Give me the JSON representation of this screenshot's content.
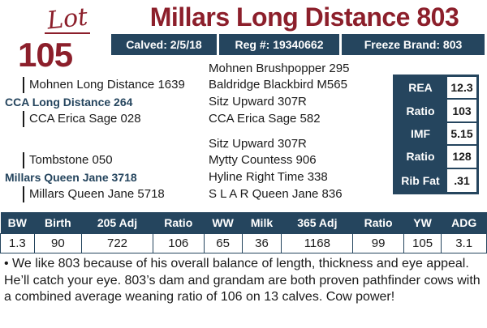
{
  "lot": {
    "label": "Lot",
    "number": "105"
  },
  "title": "Millars Long Distance 803",
  "info_bar": {
    "calved": "Calved: 2/5/18",
    "reg": "Reg #: 19340662",
    "freeze_brand": "Freeze Brand: 803"
  },
  "pedigree": {
    "sire_sire_sire": "Mohnen Brushpopper 295",
    "sire_sire": "Mohnen Long Distance 1639",
    "sire_sire_dam": "Baldridge Blackbird M565",
    "sire": "CCA Long Distance 264",
    "sire_dam_sire": "Sitz Upward 307R",
    "sire_dam": "CCA Erica Sage 028",
    "sire_dam_dam": "CCA Erica Sage 582",
    "dam_sire_sire": "Sitz Upward 307R",
    "dam_sire": "Tombstone 050",
    "dam_sire_dam": "Mytty Countess 906",
    "dam": "Millars Queen Jane 3718",
    "dam_dam_sire": "Hyline Right Time 338",
    "dam_dam": "Millars Queen Jane 5718",
    "dam_dam_dam": "S L A R Queen Jane 836"
  },
  "epd": [
    {
      "label": "REA",
      "value": "12.3"
    },
    {
      "label": "Ratio",
      "value": "103"
    },
    {
      "label": "IMF",
      "value": "5.15"
    },
    {
      "label": "Ratio",
      "value": "128"
    },
    {
      "label": "Rib Fat",
      "value": ".31"
    }
  ],
  "performance": {
    "headers": [
      "BW",
      "Birth",
      "205 Adj",
      "Ratio",
      "WW",
      "Milk",
      "365 Adj",
      "Ratio",
      "YW",
      "ADG"
    ],
    "values": [
      "1.3",
      "90",
      "722",
      "106",
      "65",
      "36",
      "1168",
      "99",
      "105",
      "3.1"
    ]
  },
  "description": "• We like 803 because of his overall balance of length, thickness and eye appeal. He’ll catch your eye. 803’s dam and grandam are both proven pathfinder cows with a combined average weaning ratio of 106 on 13 calves. Cow power!",
  "colors": {
    "brand": "#8c1f2b",
    "navy": "#25455e"
  }
}
